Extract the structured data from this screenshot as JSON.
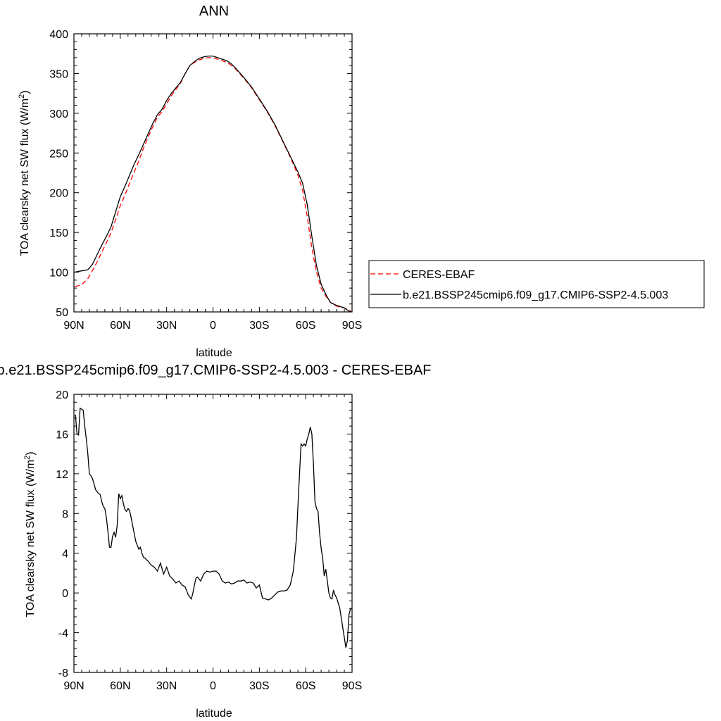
{
  "chart_data": [
    {
      "type": "line",
      "title": "ANN",
      "xlabel": "latitude",
      "ylabel": "TOA clearsky net SW flux (W/m",
      "ylabel_sup": "2",
      "ylabel_close": ")",
      "xlim": [
        90,
        -90
      ],
      "ylim": [
        50,
        400
      ],
      "xticks": [
        90,
        60,
        30,
        0,
        -30,
        -60,
        -90
      ],
      "xtick_labels": [
        "90N",
        "60N",
        "30N",
        "0",
        "30S",
        "60S",
        "90S"
      ],
      "yticks": [
        50,
        100,
        150,
        200,
        250,
        300,
        350,
        400
      ],
      "ytick_labels": [
        "50",
        "100",
        "150",
        "200",
        "250",
        "300",
        "350",
        "400"
      ],
      "legend_position": "right",
      "series": [
        {
          "name": "CERES-EBAF",
          "color": "#ff0000",
          "dash": "dashed",
          "x": [
            89.5,
            87,
            84,
            81,
            78,
            75,
            72,
            69,
            66,
            63,
            60,
            57,
            54,
            51,
            48,
            45,
            42,
            39,
            36,
            33,
            30,
            27,
            24,
            21,
            18,
            15,
            12,
            9,
            6,
            3,
            0,
            -3,
            -6,
            -9,
            -12,
            -15,
            -20,
            -25,
            -30,
            -35,
            -40,
            -45,
            -50,
            -55,
            -58,
            -61,
            -64,
            -67,
            -70,
            -73,
            -76,
            -79,
            -82,
            -85,
            -88,
            -89.5
          ],
          "y": [
            82,
            83,
            86,
            92,
            102,
            113,
            125,
            137,
            150,
            166,
            184,
            197,
            212,
            226,
            240,
            256,
            270,
            283,
            295,
            302,
            312,
            322,
            330,
            338,
            350,
            360,
            364,
            367,
            369,
            370,
            370,
            368,
            366,
            364,
            360,
            355,
            344,
            332,
            317,
            302,
            285,
            265,
            245,
            222,
            203,
            170,
            130,
            100,
            80,
            70,
            62,
            58,
            56,
            55,
            52,
            51
          ]
        },
        {
          "name": "b.e21.BSSP245cmip6.f09_g17.CMIP6-SSP2-4.5.003",
          "color": "#000000",
          "dash": "solid",
          "x": [
            89.5,
            87,
            84,
            81,
            78,
            75,
            72,
            69,
            66,
            63,
            60,
            57,
            54,
            51,
            48,
            45,
            42,
            39,
            36,
            33,
            30,
            27,
            24,
            21,
            18,
            15,
            12,
            9,
            6,
            3,
            0,
            -3,
            -6,
            -9,
            -12,
            -15,
            -20,
            -25,
            -30,
            -35,
            -40,
            -45,
            -50,
            -55,
            -58,
            -61,
            -64,
            -67,
            -70,
            -73,
            -76,
            -79,
            -82,
            -85,
            -88,
            -89.5
          ],
          "y": [
            100,
            101,
            102,
            103,
            110,
            122,
            134,
            145,
            157,
            176,
            195,
            208,
            222,
            236,
            248,
            261,
            274,
            287,
            298,
            305,
            316,
            325,
            332,
            339,
            350,
            360,
            365,
            369,
            371,
            372,
            372,
            370,
            368,
            366,
            362,
            356,
            345,
            333,
            318,
            303,
            286,
            266,
            246,
            226,
            212,
            185,
            145,
            108,
            85,
            72,
            62,
            59,
            57,
            55,
            51,
            50
          ]
        }
      ]
    },
    {
      "type": "line",
      "title": "b.e21.BSSP245cmip6.f09_g17.CMIP6-SSP2-4.5.003 - CERES-EBAF",
      "xlabel": "latitude",
      "ylabel": "TOA clearsky net SW flux (W/m",
      "ylabel_sup": "2",
      "ylabel_close": ")",
      "xlim": [
        90,
        -90
      ],
      "ylim": [
        -8,
        20
      ],
      "xticks": [
        90,
        60,
        30,
        0,
        -30,
        -60,
        -90
      ],
      "xtick_labels": [
        "90N",
        "60N",
        "30N",
        "0",
        "30S",
        "60S",
        "90S"
      ],
      "yticks": [
        -8,
        -4,
        0,
        4,
        8,
        12,
        16,
        20
      ],
      "ytick_labels": [
        "-8",
        "-4",
        "0",
        "4",
        "8",
        "12",
        "16",
        "20"
      ],
      "series": [
        {
          "name": "",
          "color": "#000000",
          "dash": "solid",
          "x": [
            89.5,
            89,
            88,
            87,
            86,
            85,
            84,
            83,
            82,
            81,
            80,
            79,
            78,
            77,
            76,
            75,
            74,
            73,
            72,
            71,
            70,
            69,
            68,
            67,
            66,
            65,
            64,
            63,
            62,
            61,
            60,
            59,
            58,
            57,
            56,
            55,
            54,
            53,
            52,
            51,
            50,
            49,
            48,
            47,
            46,
            45,
            44,
            42,
            40,
            38,
            36,
            34,
            32,
            30,
            28,
            26,
            24,
            22,
            20,
            18,
            16,
            14,
            13,
            12,
            11,
            10,
            9,
            8,
            6,
            4,
            2,
            0,
            -2,
            -4,
            -6,
            -8,
            -10,
            -12,
            -14,
            -16,
            -18,
            -20,
            -22,
            -24,
            -26,
            -28,
            -30,
            -32,
            -34,
            -36,
            -38,
            -40,
            -42,
            -44,
            -46,
            -48,
            -50,
            -52,
            -54,
            -55,
            -56,
            -57,
            -58,
            -59,
            -60,
            -61,
            -62,
            -63,
            -64,
            -65,
            -66,
            -67,
            -68,
            -69,
            -70,
            -71,
            -72,
            -73,
            -74,
            -75,
            -76,
            -77,
            -78,
            -79,
            -80,
            -81,
            -82,
            -83,
            -84,
            -85,
            -86,
            -87,
            -88,
            -89,
            -89.5
          ],
          "y": [
            17.9,
            17.9,
            16.0,
            15.9,
            18.6,
            18.5,
            18.4,
            16.8,
            15.5,
            14.0,
            12.0,
            11.8,
            11.5,
            11.0,
            10.4,
            10.2,
            10.0,
            9.9,
            9.2,
            8.7,
            8.5,
            7.6,
            6.2,
            4.6,
            4.6,
            5.7,
            6.1,
            5.6,
            6.8,
            10.0,
            9.5,
            9.8,
            9.0,
            8.4,
            8.2,
            8.5,
            8.3,
            7.6,
            6.8,
            6.0,
            5.2,
            4.8,
            4.4,
            4.6,
            4.0,
            3.6,
            3.5,
            3.2,
            2.8,
            2.6,
            2.2,
            3.0,
            1.9,
            2.6,
            1.7,
            1.4,
            1.0,
            1.2,
            0.8,
            0.6,
            -0.2,
            -0.6,
            0.0,
            0.8,
            1.5,
            1.6,
            1.4,
            1.2,
            1.9,
            2.2,
            2.1,
            2.2,
            2.2,
            1.9,
            1.2,
            1.0,
            1.1,
            0.9,
            1.0,
            1.2,
            1.2,
            1.3,
            1.0,
            1.1,
            1.0,
            0.5,
            0.8,
            -0.5,
            -0.6,
            -0.7,
            -0.5,
            -0.2,
            0.1,
            0.2,
            0.2,
            0.3,
            0.8,
            2.2,
            5.5,
            8.8,
            12.0,
            15.0,
            14.8,
            15.0,
            14.8,
            15.5,
            16.0,
            16.7,
            16.0,
            13.0,
            9.2,
            8.5,
            8.2,
            6.0,
            4.5,
            3.5,
            1.7,
            2.4,
            1.2,
            0.0,
            -0.5,
            -0.6,
            0.3,
            -0.2,
            -0.5,
            -1.0,
            -1.5,
            -2.5,
            -3.5,
            -4.5,
            -5.5,
            -4.8,
            -2.2,
            -1.6,
            -1.5
          ]
        }
      ]
    }
  ]
}
